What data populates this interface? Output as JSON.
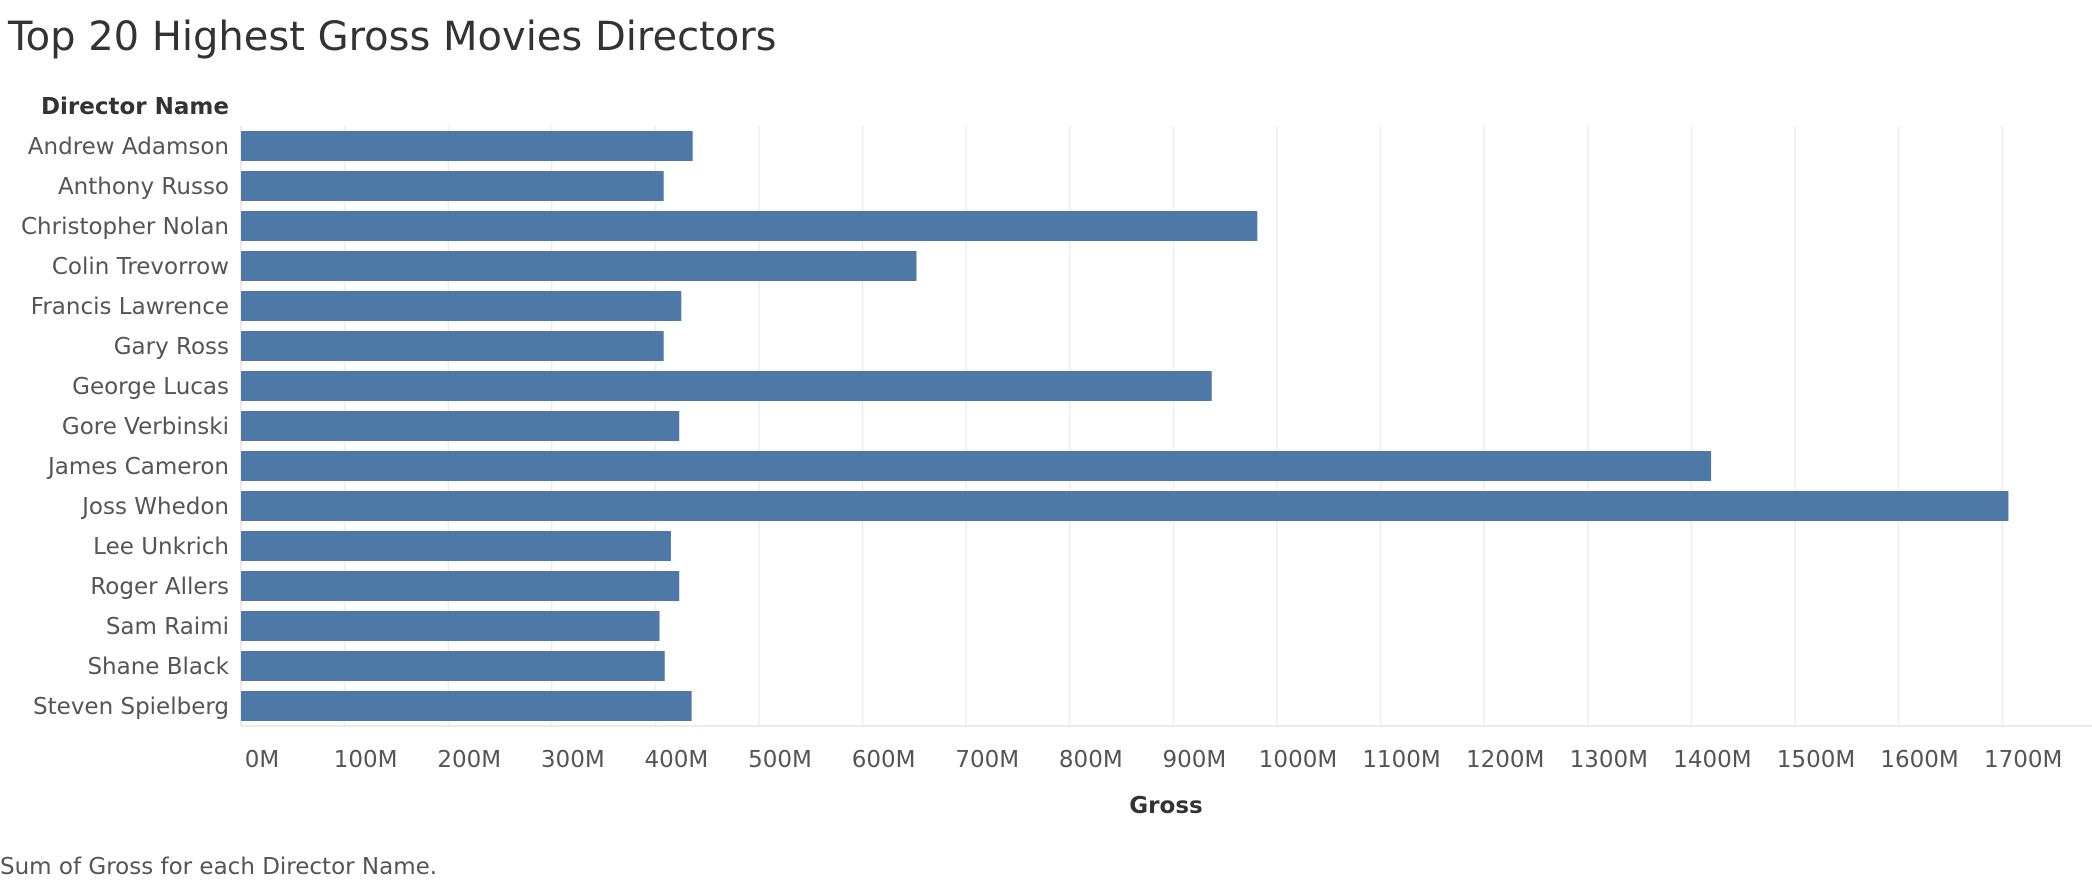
{
  "chart_data": {
    "type": "bar",
    "orientation": "horizontal",
    "title": "Top 20 Highest Gross Movies Directors",
    "row_header": "Director Name",
    "categories": [
      "Andrew Adamson",
      "Anthony Russo",
      "Christopher Nolan",
      "Colin Trevorrow",
      "Francis Lawrence",
      "Gary Ross",
      "George Lucas",
      "Gore Verbinski",
      "James Cameron",
      "Joss Whedon",
      "Lee Unkrich",
      "Roger Allers",
      "Sam Raimi",
      "Shane Black",
      "Steven Spielberg"
    ],
    "series": [
      {
        "values": [
          436,
          408,
          981,
          652,
          425,
          408,
          937,
          423,
          1419,
          1706,
          415,
          423,
          404,
          409,
          435
        ]
      }
    ],
    "unit": "M",
    "xlabel": "Gross",
    "xlim": [
      0,
      1750
    ],
    "xticks": [
      0,
      100,
      200,
      300,
      400,
      500,
      600,
      700,
      800,
      900,
      1000,
      1100,
      1200,
      1300,
      1400,
      1500,
      1600,
      1700
    ],
    "xtick_labels": [
      "0M",
      "100M",
      "200M",
      "300M",
      "400M",
      "500M",
      "600M",
      "700M",
      "800M",
      "900M",
      "1000M",
      "1100M",
      "1200M",
      "1300M",
      "1400M",
      "1500M",
      "1600M",
      "1700M"
    ],
    "grid": true,
    "legend": "none",
    "bar_color": "#4e79a7",
    "grid_color": "#eeeeee",
    "caption": "Sum of Gross for each Director Name."
  }
}
